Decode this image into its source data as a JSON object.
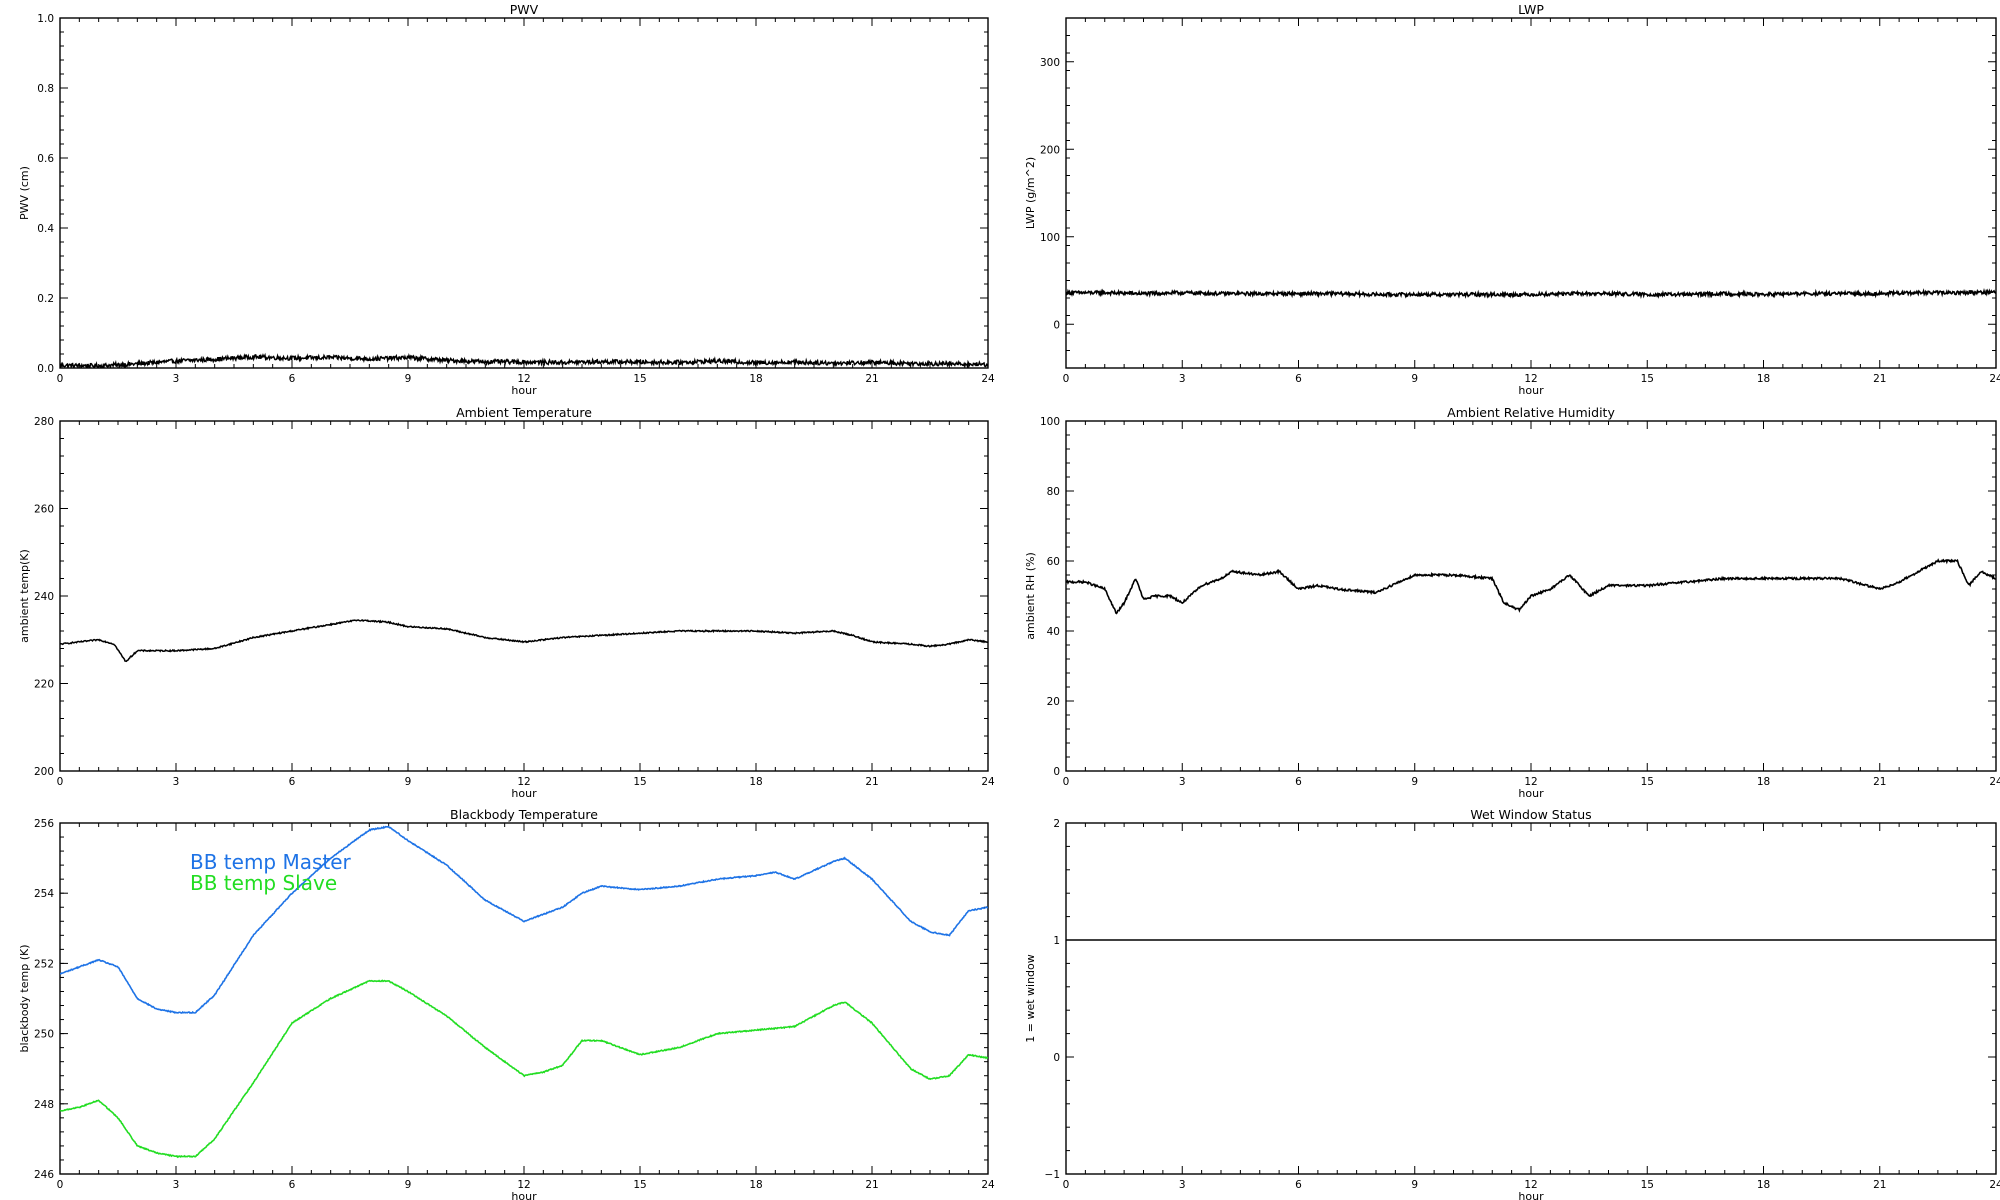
{
  "chart_data": [
    {
      "type": "line",
      "title": "PWV",
      "xlabel": "hour",
      "ylabel": "PWV (cm)",
      "xlim": [
        0,
        24
      ],
      "ylim": [
        0,
        1
      ],
      "xticks": [
        0,
        3,
        6,
        9,
        12,
        15,
        18,
        21,
        24
      ],
      "yticks": [
        "0.0",
        "0.2",
        "0.4",
        "0.6",
        "0.8",
        "1.0"
      ],
      "series": [
        {
          "color": "#000000",
          "noise": 0.006,
          "x": [
            0,
            1,
            2,
            3,
            4,
            5,
            6,
            7,
            8,
            9,
            10,
            11,
            12,
            13,
            14,
            15,
            16,
            17,
            18,
            19,
            20,
            21,
            22,
            23,
            24
          ],
          "y": [
            0.008,
            0.006,
            0.012,
            0.02,
            0.025,
            0.032,
            0.028,
            0.03,
            0.026,
            0.03,
            0.022,
            0.018,
            0.017,
            0.016,
            0.018,
            0.017,
            0.016,
            0.02,
            0.015,
            0.017,
            0.014,
            0.016,
            0.013,
            0.012,
            0.01
          ]
        }
      ]
    },
    {
      "type": "line",
      "title": "LWP",
      "xlabel": "hour",
      "ylabel": "LWP (g/m^2)",
      "xlim": [
        0,
        24
      ],
      "ylim": [
        -50,
        350
      ],
      "xticks": [
        0,
        3,
        6,
        9,
        12,
        15,
        18,
        21,
        24
      ],
      "yticks": [
        "0",
        "100",
        "200",
        "300"
      ],
      "series": [
        {
          "color": "#000000",
          "noise": 2.0,
          "x": [
            0,
            1,
            2,
            3,
            4,
            5,
            6,
            7,
            8,
            9,
            10,
            11,
            12,
            13,
            14,
            15,
            16,
            17,
            18,
            19,
            20,
            21,
            22,
            23,
            24
          ],
          "y": [
            36,
            36,
            35,
            36,
            35,
            35,
            35,
            35,
            34,
            34,
            34,
            34,
            34,
            35,
            35,
            34,
            34,
            35,
            34,
            35,
            35,
            35,
            36,
            36,
            37
          ]
        }
      ]
    },
    {
      "type": "line",
      "title": "Ambient Temperature",
      "xlabel": "hour",
      "ylabel": "ambient temp(K)",
      "xlim": [
        0,
        24
      ],
      "ylim": [
        200,
        280
      ],
      "xticks": [
        0,
        3,
        6,
        9,
        12,
        15,
        18,
        21,
        24
      ],
      "yticks": [
        "200",
        "220",
        "240",
        "260",
        "280"
      ],
      "series": [
        {
          "color": "#000000",
          "noise": 0.15,
          "x": [
            0,
            0.5,
            1.0,
            1.4,
            1.7,
            2.0,
            3.0,
            4.0,
            5.0,
            6.0,
            7.0,
            7.7,
            8.5,
            9.0,
            10.0,
            11.0,
            12.0,
            13.0,
            14.0,
            15.0,
            16.0,
            17.0,
            18.0,
            19.0,
            20.0,
            20.5,
            21.0,
            22.0,
            22.5,
            23.0,
            23.5,
            24.0
          ],
          "y": [
            229,
            229.5,
            230,
            229,
            225,
            227.5,
            227.5,
            228,
            230.5,
            232,
            233.5,
            234.5,
            234,
            233,
            232.5,
            230.5,
            229.5,
            230.5,
            231,
            231.5,
            232,
            232,
            232,
            231.5,
            232,
            231,
            229.5,
            229,
            228.5,
            229,
            230,
            229.5
          ]
        }
      ]
    },
    {
      "type": "line",
      "title": "Ambient Relative Humidity",
      "xlabel": "hour",
      "ylabel": "ambient RH (%)",
      "xlim": [
        0,
        24
      ],
      "ylim": [
        0,
        100
      ],
      "xticks": [
        0,
        3,
        6,
        9,
        12,
        15,
        18,
        21,
        24
      ],
      "yticks": [
        "0",
        "20",
        "40",
        "60",
        "80",
        "100"
      ],
      "series": [
        {
          "color": "#000000",
          "noise": 0.3,
          "x": [
            0,
            0.5,
            1.0,
            1.3,
            1.5,
            1.8,
            2.0,
            2.3,
            2.7,
            3.0,
            3.5,
            4.0,
            4.3,
            5.0,
            5.5,
            6.0,
            6.5,
            7.0,
            8.0,
            9.0,
            10.0,
            11.0,
            11.3,
            11.7,
            12.0,
            12.5,
            13.0,
            13.5,
            14.0,
            15.0,
            16.0,
            17.0,
            18.0,
            19.0,
            20.0,
            21.0,
            21.5,
            22.0,
            22.5,
            23.0,
            23.3,
            23.6,
            24.0
          ],
          "y": [
            54,
            54,
            52,
            45,
            48,
            55,
            49,
            50,
            50,
            48,
            53,
            55,
            57,
            56,
            57,
            52,
            53,
            52,
            51,
            56,
            56,
            55,
            48,
            46,
            50,
            52,
            56,
            50,
            53,
            53,
            54,
            55,
            55,
            55,
            55,
            52,
            54,
            57,
            60,
            60,
            53,
            57,
            55
          ]
        }
      ]
    },
    {
      "type": "line",
      "title": "Blackbody Temperature",
      "xlabel": "hour",
      "ylabel": "blackbody temp (K)",
      "xlim": [
        0,
        24
      ],
      "ylim": [
        246,
        256
      ],
      "xticks": [
        0,
        3,
        6,
        9,
        12,
        15,
        18,
        21,
        24
      ],
      "yticks": [
        "246",
        "248",
        "250",
        "252",
        "254",
        "256"
      ],
      "series": [
        {
          "name": "BB temp Master",
          "color": "#1e73e6",
          "noise": 0.015,
          "x": [
            0,
            0.5,
            1.0,
            1.5,
            2.0,
            2.5,
            3.0,
            3.5,
            4.0,
            5.0,
            6.0,
            7.0,
            8.0,
            8.5,
            9.0,
            10.0,
            11.0,
            12.0,
            13.0,
            13.5,
            14.0,
            15.0,
            16.0,
            17.0,
            18.0,
            18.5,
            19.0,
            20.0,
            20.3,
            21.0,
            22.0,
            22.5,
            23.0,
            23.5,
            24.0
          ],
          "y": [
            251.7,
            251.9,
            252.1,
            251.9,
            251.0,
            250.7,
            250.6,
            250.6,
            251.1,
            252.8,
            254.0,
            255.0,
            255.8,
            255.9,
            255.5,
            254.8,
            253.8,
            253.2,
            253.6,
            254.0,
            254.2,
            254.1,
            254.2,
            254.4,
            254.5,
            254.6,
            254.4,
            254.9,
            255.0,
            254.4,
            253.2,
            252.9,
            252.8,
            253.5,
            253.6
          ]
        },
        {
          "name": "BB temp Slave",
          "color": "#22dd22",
          "noise": 0.015,
          "x": [
            0,
            0.5,
            1.0,
            1.5,
            2.0,
            2.5,
            3.0,
            3.5,
            4.0,
            5.0,
            6.0,
            7.0,
            8.0,
            8.5,
            9.0,
            10.0,
            11.0,
            12.0,
            12.5,
            13.0,
            13.5,
            14.0,
            15.0,
            16.0,
            16.5,
            17.0,
            18.0,
            19.0,
            20.0,
            20.3,
            21.0,
            22.0,
            22.5,
            23.0,
            23.5,
            24.0
          ],
          "y": [
            247.8,
            247.9,
            248.1,
            247.6,
            246.8,
            246.6,
            246.5,
            246.5,
            247.0,
            248.6,
            250.3,
            251.0,
            251.5,
            251.5,
            251.2,
            250.5,
            249.6,
            248.8,
            248.9,
            249.1,
            249.8,
            249.8,
            249.4,
            249.6,
            249.8,
            250.0,
            250.1,
            250.2,
            250.8,
            250.9,
            250.3,
            249.0,
            248.7,
            248.8,
            249.4,
            249.3
          ]
        }
      ],
      "legend": [
        "BB temp Master",
        "BB temp Slave"
      ]
    },
    {
      "type": "line",
      "title": "Wet Window Status",
      "xlabel": "hour",
      "ylabel": "1 = wet window",
      "xlim": [
        0,
        24
      ],
      "ylim": [
        -1,
        2
      ],
      "xticks": [
        0,
        3,
        6,
        9,
        12,
        15,
        18,
        21,
        24
      ],
      "yticks": [
        "−1",
        "0",
        "1",
        "2"
      ],
      "series": [
        {
          "color": "#000000",
          "noise": 0,
          "x": [
            0,
            24
          ],
          "y": [
            1,
            1
          ]
        }
      ]
    }
  ]
}
